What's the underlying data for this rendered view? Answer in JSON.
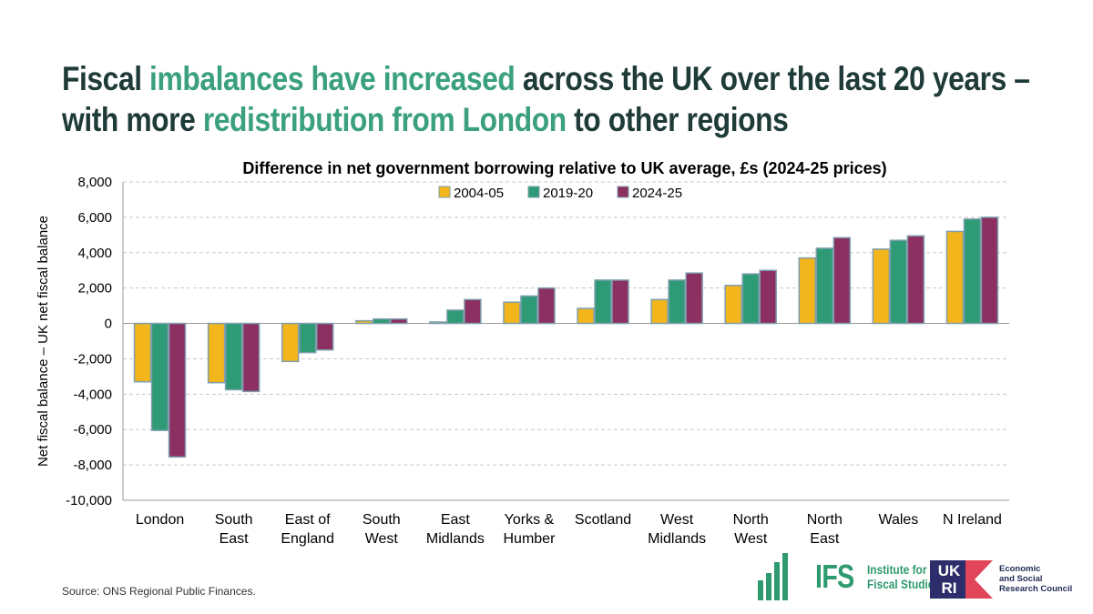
{
  "headline": {
    "part1": "Fiscal ",
    "hl1": "imbalances have increased",
    "part2": " across the UK over the last 20 years –",
    "part3": "with more ",
    "hl2": "redistribution from London",
    "part4": " to other regions"
  },
  "source": "Source: ONS Regional Public Finances.",
  "logos": {
    "ifs_abbrev": "IFS",
    "ifs_name_line1": "Institute for",
    "ifs_name_line2": "Fiscal Studies",
    "ukri_line1": "UK",
    "ukri_line2": "RI",
    "esrc_line1": "Economic",
    "esrc_line2": "and Social",
    "esrc_line3": "Research Council"
  },
  "colors": {
    "title_dark": "#1f3b38",
    "title_highlight": "#3aa07d",
    "bar_outline": "#7f9fae"
  },
  "chart_data": {
    "type": "bar",
    "title": "Difference in net government borrowing relative to UK average, £s (2024-25 prices)",
    "ylabel": "Net fiscal balance – UK net fiscal balance",
    "xlabel": "",
    "ylim": [
      -10000,
      8000
    ],
    "yticks": [
      8000,
      6000,
      4000,
      2000,
      0,
      -2000,
      -4000,
      -6000,
      -8000,
      -10000
    ],
    "ytick_labels": [
      "8,000",
      "6,000",
      "4,000",
      "2,000",
      "0",
      "-2,000",
      "-4,000",
      "-6,000",
      "-8,000",
      "-10,000"
    ],
    "grid": true,
    "legend_position": "top",
    "categories": [
      [
        "London"
      ],
      [
        "South",
        "East"
      ],
      [
        "East of",
        "England"
      ],
      [
        "South",
        "West"
      ],
      [
        "East",
        "Midlands"
      ],
      [
        "Yorks &",
        "Humber"
      ],
      [
        "Scotland"
      ],
      [
        "West",
        "Midlands"
      ],
      [
        "North",
        "West"
      ],
      [
        "North",
        "East"
      ],
      [
        "Wales"
      ],
      [
        "N Ireland"
      ]
    ],
    "series": [
      {
        "name": "2004-05",
        "color": "#f2b51c",
        "values": [
          -3300,
          -3350,
          -2150,
          150,
          80,
          1200,
          850,
          1350,
          2150,
          3700,
          4200,
          5200
        ]
      },
      {
        "name": "2019-20",
        "color": "#2e9b76",
        "values": [
          -6050,
          -3750,
          -1650,
          250,
          750,
          1550,
          2450,
          2450,
          2800,
          4250,
          4700,
          5900
        ]
      },
      {
        "name": "2024-25",
        "color": "#8c3062",
        "values": [
          -7550,
          -3850,
          -1500,
          250,
          1350,
          2000,
          2450,
          2850,
          3000,
          4850,
          4950,
          6000
        ]
      }
    ]
  }
}
